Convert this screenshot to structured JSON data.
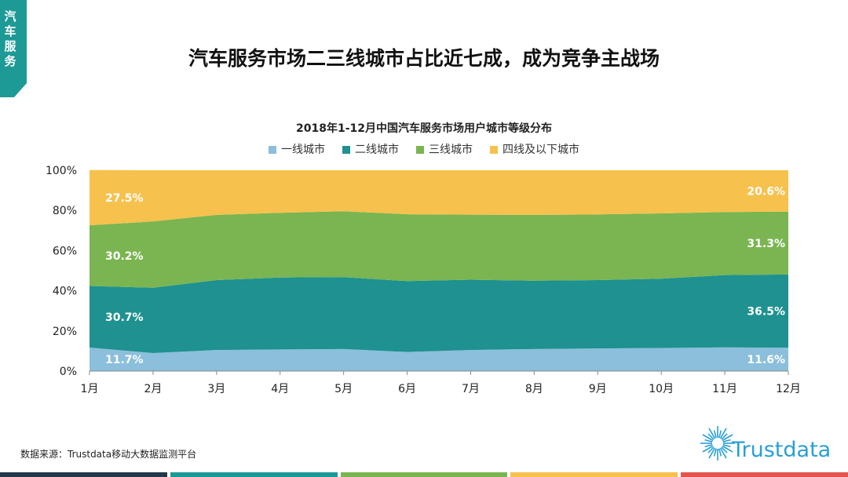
{
  "side_tab": {
    "label": "汽车服务",
    "color": "#1e9a96"
  },
  "page_title": "汽车服务市场二三线城市占比近七成，成为竞争主战场",
  "source_note": "数据来源：Trustdata移动大数据监测平台",
  "logo": {
    "text": "Trustdata",
    "color": "#2a9fd6",
    "icon": "starburst-icon"
  },
  "footer_colors": [
    "#25374a",
    "#1e9a96",
    "#7ab551",
    "#f7c14e",
    "#e4544f"
  ],
  "chart_data": {
    "type": "area",
    "stacked": true,
    "title": "2018年1-12月中国汽车服务市场用户城市等级分布",
    "categories": [
      "1月",
      "2月",
      "3月",
      "4月",
      "5月",
      "6月",
      "7月",
      "8月",
      "9月",
      "10月",
      "11月",
      "12月"
    ],
    "ylim": [
      0,
      100
    ],
    "yticks": [
      "0%",
      "20%",
      "40%",
      "60%",
      "80%",
      "100%"
    ],
    "legend_position": "top",
    "grid": false,
    "series": [
      {
        "name": "一线城市",
        "color": "#8bbfdb",
        "values": [
          11.7,
          9.0,
          10.5,
          10.8,
          11.0,
          9.5,
          10.5,
          11.0,
          11.3,
          11.5,
          11.8,
          11.6
        ],
        "labels": [
          "11.7%",
          "",
          "",
          "",
          "",
          "",
          "",
          "",
          "",
          "",
          "",
          "11.6%"
        ]
      },
      {
        "name": "二线城市",
        "color": "#1e9190",
        "values": [
          30.7,
          32.5,
          34.8,
          35.8,
          35.8,
          35.3,
          35.0,
          34.0,
          34.0,
          34.5,
          36.0,
          36.5
        ],
        "labels": [
          "30.7%",
          "",
          "",
          "",
          "",
          "",
          "",
          "",
          "",
          "",
          "",
          "36.5%"
        ]
      },
      {
        "name": "三线城市",
        "color": "#7ab551",
        "values": [
          30.2,
          33.0,
          32.5,
          32.2,
          32.8,
          33.3,
          32.4,
          32.8,
          32.7,
          32.5,
          31.4,
          31.3
        ],
        "labels": [
          "30.2%",
          "",
          "",
          "",
          "",
          "",
          "",
          "",
          "",
          "",
          "",
          "31.3%"
        ]
      },
      {
        "name": "四线及以下城市",
        "color": "#f7c14e",
        "values": [
          27.5,
          25.5,
          22.2,
          21.2,
          20.4,
          21.9,
          22.1,
          22.2,
          22.0,
          21.5,
          20.8,
          20.6
        ],
        "labels": [
          "27.5%",
          "",
          "",
          "",
          "",
          "",
          "",
          "",
          "",
          "",
          "",
          "20.6%"
        ]
      }
    ]
  }
}
